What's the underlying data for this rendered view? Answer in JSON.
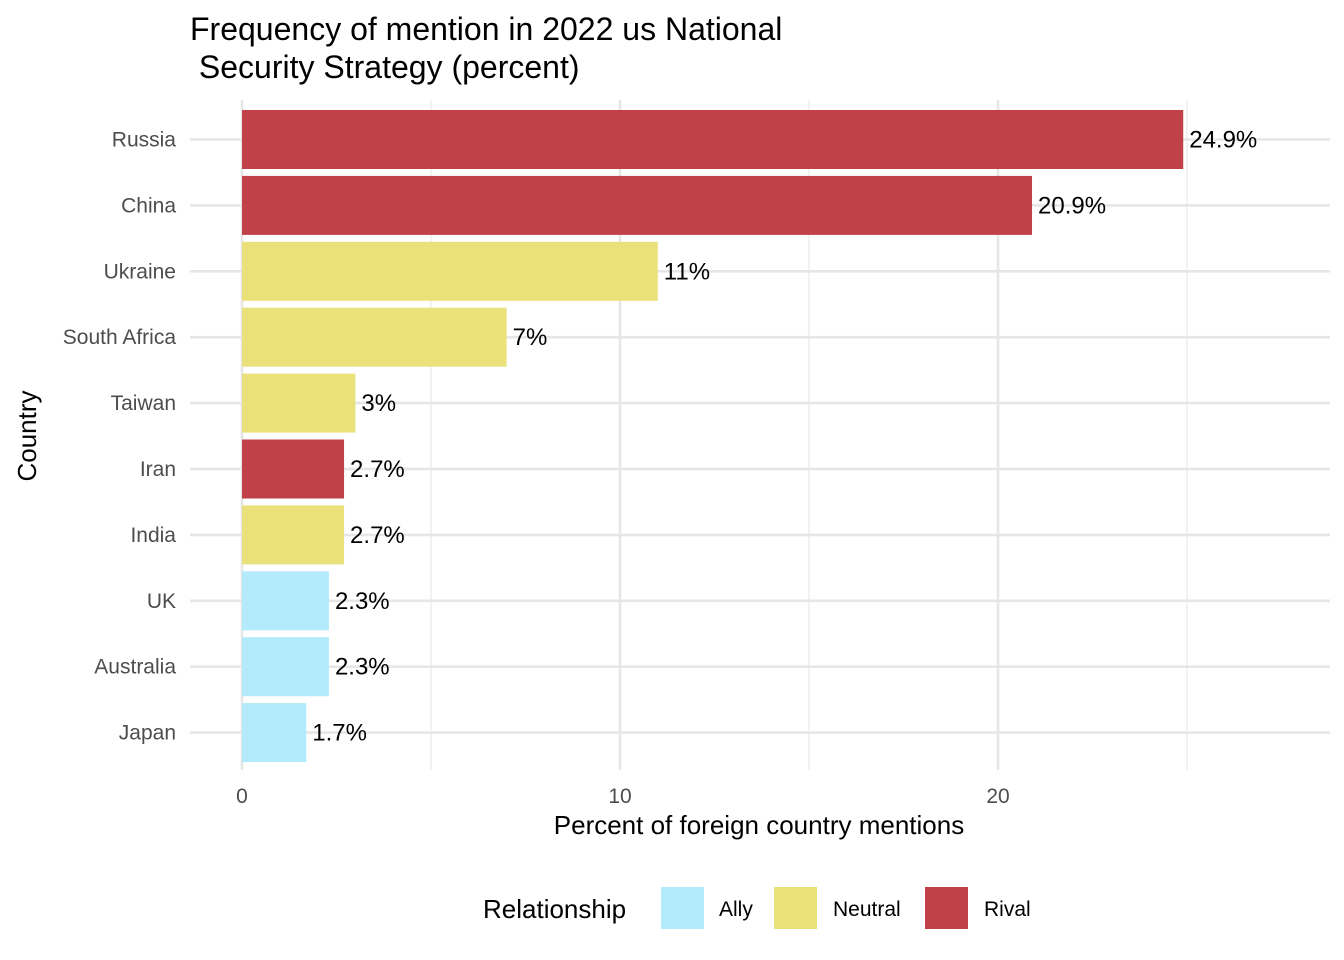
{
  "chart_data": {
    "type": "bar",
    "orientation": "horizontal",
    "title_lines": [
      "Frequency of mention in 2022 us National",
      " Security Strategy (percent)"
    ],
    "xlabel": "Percent of foreign country mentions",
    "ylabel": "Country",
    "xlim": [
      0,
      28.5
    ],
    "x_ticks": [
      0,
      10,
      20
    ],
    "x_minor_ticks": [
      5,
      15,
      25
    ],
    "grid": true,
    "categories": [
      "Russia",
      "China",
      "Ukraine",
      "South Africa",
      "Taiwan",
      "Iran",
      "India",
      "UK",
      "Australia",
      "Japan"
    ],
    "values": [
      24.9,
      20.9,
      11,
      7,
      3,
      2.7,
      2.7,
      2.3,
      2.3,
      1.7
    ],
    "data_labels": [
      "24.9%",
      "20.9%",
      "11%",
      "7%",
      "3%",
      "2.7%",
      "2.7%",
      "2.3%",
      "2.3%",
      "1.7%"
    ],
    "groups": [
      "Rival",
      "Rival",
      "Neutral",
      "Neutral",
      "Neutral",
      "Rival",
      "Neutral",
      "Ally",
      "Ally",
      "Ally"
    ],
    "legend": {
      "title": "Relationship",
      "position": "bottom",
      "items": [
        {
          "label": "Ally",
          "color": "#b3ebfc"
        },
        {
          "label": "Neutral",
          "color": "#ebe17a"
        },
        {
          "label": "Rival",
          "color": "#c04147"
        }
      ]
    }
  }
}
